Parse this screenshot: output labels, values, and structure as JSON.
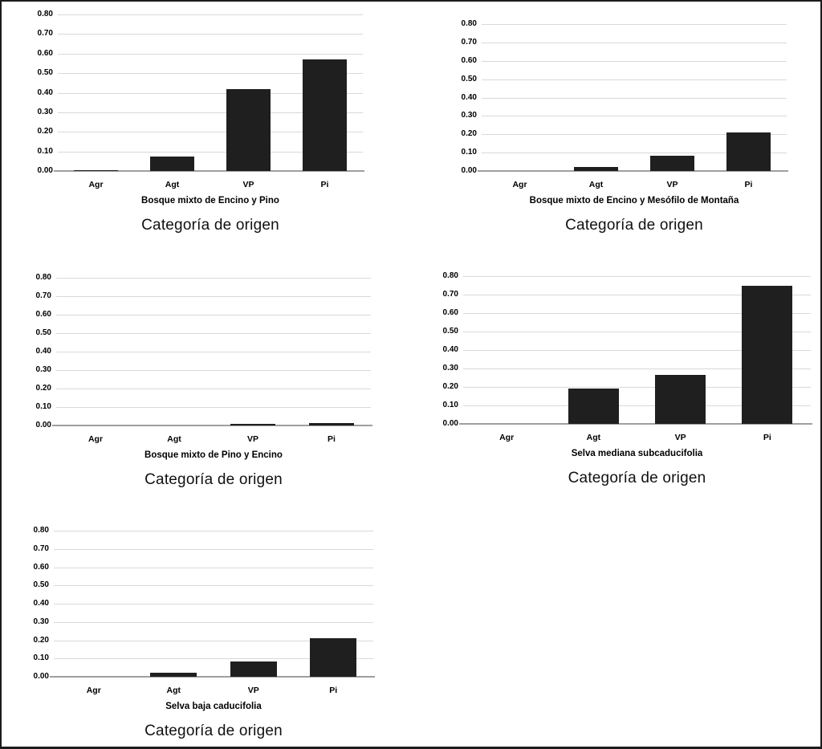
{
  "figure": {
    "shared_x_axis_label": "Categoría de origen"
  },
  "colors": {
    "bar": "#1f1f1f",
    "gridline": "#d9d9d9",
    "axis_line": "#9f9f9f",
    "text": "#000000",
    "page_border": "#1c1c1c",
    "background": "#ffffff"
  },
  "chart_data": [
    {
      "type": "bar",
      "title": "Bosque mixto de Encino y Pino",
      "xlabel": "Categoría de origen",
      "ylabel": "",
      "categories": [
        "Agr",
        "Agt",
        "VP",
        "Pi"
      ],
      "values": [
        0.005,
        0.075,
        0.42,
        0.57
      ],
      "ylim": [
        0,
        0.8
      ],
      "ytick_labels": [
        "0.00",
        "0.10",
        "0.20",
        "0.30",
        "0.40",
        "0.50",
        "0.60",
        "0.70",
        "0.80"
      ],
      "grid": true,
      "legend": false
    },
    {
      "type": "bar",
      "title": "Bosque mixto de Encino y Mesófilo de Montaña",
      "xlabel": "Categoría de origen",
      "ylabel": "",
      "categories": [
        "Agr",
        "Agt",
        "VP",
        "Pi"
      ],
      "values": [
        0,
        0.02,
        0.085,
        0.21
      ],
      "ylim": [
        0,
        0.8
      ],
      "ytick_labels": [
        "0.00",
        "0.10",
        "0.20",
        "0.30",
        "0.40",
        "0.50",
        "0.60",
        "0.70",
        "0.80"
      ],
      "grid": true,
      "legend": false
    },
    {
      "type": "bar",
      "title": "Bosque mixto de Pino y Encino",
      "xlabel": "Categoría de origen",
      "ylabel": "",
      "categories": [
        "Agr",
        "Agt",
        "VP",
        "Pi"
      ],
      "values": [
        0,
        0,
        0.01,
        0.015
      ],
      "ylim": [
        0,
        0.8
      ],
      "ytick_labels": [
        "0.00",
        "0.10",
        "0.20",
        "0.30",
        "0.40",
        "0.50",
        "0.60",
        "0.70",
        "0.80"
      ],
      "grid": true,
      "legend": false
    },
    {
      "type": "bar",
      "title": "Selva mediana subcaducifolia",
      "xlabel": "Categoría de origen",
      "ylabel": "",
      "categories": [
        "Agr",
        "Agt",
        "VP",
        "Pi"
      ],
      "values": [
        0,
        0.19,
        0.265,
        0.75
      ],
      "ylim": [
        0,
        0.8
      ],
      "ytick_labels": [
        "0.00",
        "0.10",
        "0.20",
        "0.30",
        "0.40",
        "0.50",
        "0.60",
        "0.70",
        "0.80"
      ],
      "grid": true,
      "legend": false
    },
    {
      "type": "bar",
      "title": "Selva baja caducifolia",
      "xlabel": "Categoría de origen",
      "ylabel": "",
      "categories": [
        "Agr",
        "Agt",
        "VP",
        "Pi"
      ],
      "values": [
        0,
        0.02,
        0.085,
        0.21
      ],
      "ylim": [
        0,
        0.8
      ],
      "ytick_labels": [
        "0.00",
        "0.10",
        "0.20",
        "0.30",
        "0.40",
        "0.50",
        "0.60",
        "0.70",
        "0.80"
      ],
      "grid": true,
      "legend": false
    }
  ]
}
